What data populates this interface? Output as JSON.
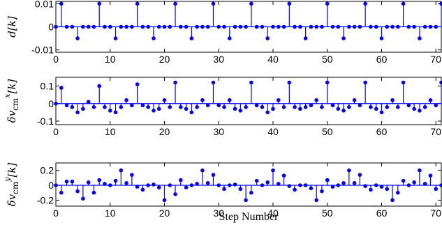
{
  "chart_data": [
    {
      "type": "stem",
      "ylabel": "d[k]",
      "xlabel": "",
      "xlim": [
        0,
        71
      ],
      "ylim": [
        -0.011,
        0.011
      ],
      "xticks": [
        0,
        10,
        20,
        30,
        40,
        50,
        60,
        70
      ],
      "xtick_labels": [
        "0",
        "10",
        "20",
        "30",
        "40",
        "50",
        "60",
        "70"
      ],
      "yticks": [
        -0.01,
        0,
        0.01
      ],
      "ytick_labels": [
        "-0.01",
        "0",
        "0.01"
      ],
      "color": "#0000ff",
      "x": [
        0,
        1,
        2,
        3,
        4,
        5,
        6,
        7,
        8,
        9,
        10,
        11,
        12,
        13,
        14,
        15,
        16,
        17,
        18,
        19,
        20,
        21,
        22,
        23,
        24,
        25,
        26,
        27,
        28,
        29,
        30,
        31,
        32,
        33,
        34,
        35,
        36,
        37,
        38,
        39,
        40,
        41,
        42,
        43,
        44,
        45,
        46,
        47,
        48,
        49,
        50,
        51,
        52,
        53,
        54,
        55,
        56,
        57,
        58,
        59,
        60,
        61,
        62,
        63,
        64,
        65,
        66,
        67,
        68,
        69,
        70,
        71
      ],
      "values": [
        0,
        0.01,
        0,
        0,
        -0.005,
        0,
        0,
        0,
        0.01,
        0,
        0,
        -0.005,
        0,
        0,
        0,
        0.01,
        0,
        0,
        -0.005,
        0,
        0,
        0,
        0.01,
        0,
        0,
        -0.005,
        0,
        0,
        0,
        0.01,
        0,
        0,
        -0.005,
        0,
        0,
        0,
        0.01,
        0,
        0,
        -0.005,
        0,
        0,
        0,
        0.01,
        0,
        0,
        -0.005,
        0,
        0,
        0,
        0.01,
        0,
        0,
        -0.005,
        0,
        0,
        0,
        0.01,
        0,
        0,
        -0.005,
        0,
        0,
        0,
        0.01,
        0,
        0,
        -0.005,
        0,
        0,
        0,
        0.01
      ]
    },
    {
      "type": "stem",
      "ylabel": "δv_cm^x[k]",
      "xlabel": "",
      "xlim": [
        0,
        71
      ],
      "ylim": [
        -0.12,
        0.15
      ],
      "xticks": [
        0,
        10,
        20,
        30,
        40,
        50,
        60,
        70
      ],
      "xtick_labels": [
        "0",
        "10",
        "20",
        "30",
        "40",
        "50",
        "60",
        "70"
      ],
      "yticks": [
        -0.1,
        0,
        0.1
      ],
      "ytick_labels": [
        "-0.1",
        "0",
        "0.1"
      ],
      "color": "#0000ff",
      "x": [
        0,
        1,
        2,
        3,
        4,
        5,
        6,
        7,
        8,
        9,
        10,
        11,
        12,
        13,
        14,
        15,
        16,
        17,
        18,
        19,
        20,
        21,
        22,
        23,
        24,
        25,
        26,
        27,
        28,
        29,
        30,
        31,
        32,
        33,
        34,
        35,
        36,
        37,
        38,
        39,
        40,
        41,
        42,
        43,
        44,
        45,
        46,
        47,
        48,
        49,
        50,
        51,
        52,
        53,
        54,
        55,
        56,
        57,
        58,
        59,
        60,
        61,
        62,
        63,
        64,
        65,
        66,
        67,
        68,
        69,
        70,
        71
      ],
      "values": [
        0,
        0.09,
        -0.01,
        -0.02,
        -0.05,
        -0.03,
        0.01,
        -0.02,
        0.1,
        -0.02,
        -0.04,
        -0.05,
        -0.02,
        0.02,
        -0.01,
        0.11,
        -0.01,
        -0.02,
        -0.04,
        -0.03,
        0.02,
        -0.02,
        0.12,
        -0.02,
        -0.03,
        -0.05,
        -0.02,
        0.02,
        -0.01,
        0.12,
        -0.01,
        -0.02,
        0.02,
        -0.03,
        -0.04,
        -0.02,
        0.12,
        -0.01,
        -0.02,
        -0.05,
        -0.03,
        0.02,
        -0.02,
        0.12,
        -0.02,
        -0.03,
        -0.02,
        -0.01,
        0.02,
        -0.02,
        0.12,
        -0.01,
        -0.03,
        -0.04,
        -0.02,
        0.02,
        -0.01,
        0.12,
        -0.02,
        -0.03,
        -0.05,
        -0.02,
        0.02,
        -0.02,
        0.12,
        -0.01,
        -0.03,
        -0.04,
        -0.02,
        0.02,
        -0.01,
        0.12
      ]
    },
    {
      "type": "stem",
      "ylabel": "δv_cm^y[k]",
      "xlabel": "Step Number",
      "xlim": [
        0,
        71
      ],
      "ylim": [
        -0.28,
        0.3
      ],
      "xticks": [
        0,
        10,
        20,
        30,
        40,
        50,
        60,
        70
      ],
      "xtick_labels": [
        "0",
        "10",
        "20",
        "30",
        "40",
        "50",
        "60",
        "70"
      ],
      "yticks": [
        -0.2,
        0,
        0.2
      ],
      "ytick_labels": [
        "-0.2",
        "0",
        "0.2"
      ],
      "color": "#0000ff",
      "x": [
        0,
        1,
        2,
        3,
        4,
        5,
        6,
        7,
        8,
        9,
        10,
        11,
        12,
        13,
        14,
        15,
        16,
        17,
        18,
        19,
        20,
        21,
        22,
        23,
        24,
        25,
        26,
        27,
        28,
        29,
        30,
        31,
        32,
        33,
        34,
        35,
        36,
        37,
        38,
        39,
        40,
        41,
        42,
        43,
        44,
        45,
        46,
        47,
        48,
        49,
        50,
        51,
        52,
        53,
        54,
        55,
        56,
        57,
        58,
        59,
        60,
        61,
        62,
        63,
        64,
        65,
        66,
        67,
        68,
        69,
        70,
        71
      ],
      "values": [
        0,
        -0.1,
        0.05,
        0.05,
        -0.08,
        -0.18,
        0.04,
        -0.1,
        0.07,
        0.02,
        0.0,
        0.06,
        0.2,
        0.03,
        0.14,
        -0.02,
        -0.06,
        0.0,
        0.01,
        -0.03,
        -0.2,
        0.0,
        -0.12,
        0.07,
        -0.03,
        0.0,
        0.02,
        0.2,
        0.03,
        0.14,
        0.0,
        -0.05,
        0.0,
        0.01,
        -0.05,
        -0.2,
        -0.1,
        0.06,
        0.0,
        0.04,
        0.2,
        0.02,
        0.13,
        -0.01,
        -0.06,
        0.0,
        0.0,
        -0.04,
        -0.2,
        -0.08,
        0.07,
        -0.02,
        0.0,
        0.03,
        0.2,
        0.03,
        0.14,
        -0.01,
        -0.06,
        0.0,
        -0.02,
        -0.05,
        -0.2,
        -0.1,
        0.06,
        0.0,
        0.04,
        0.2,
        0.02,
        0.13,
        -0.05,
        0.0
      ]
    }
  ]
}
